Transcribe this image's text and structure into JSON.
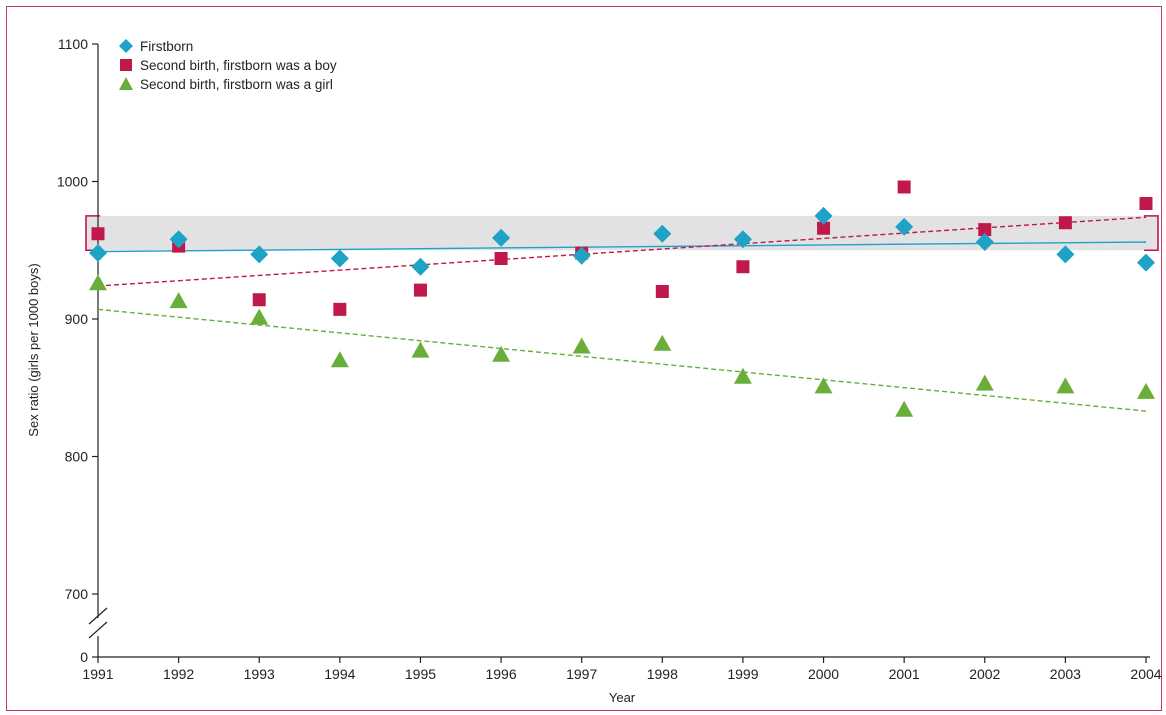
{
  "chart_data": {
    "type": "scatter",
    "xlabel": "Year",
    "ylabel": "Sex ratio (girls per 1000 boys)",
    "x_ticks": [
      "1991",
      "1992",
      "1993",
      "1994",
      "1995",
      "1996",
      "1997",
      "1998",
      "1999",
      "2000",
      "2001",
      "2002",
      "2003",
      "2004"
    ],
    "y_ticks": [
      "0",
      "700",
      "800",
      "900",
      "1000",
      "1100"
    ],
    "x": [
      1991,
      1992,
      1993,
      1994,
      1995,
      1996,
      1997,
      1998,
      1999,
      2000,
      2001,
      2002,
      2003,
      2004
    ],
    "ylim": [
      700,
      1100
    ],
    "y_axis_break": true,
    "reference_band": {
      "low": 950,
      "high": 975
    },
    "legend_position": "top-left",
    "series": [
      {
        "name": "Firstborn",
        "marker": "diamond",
        "color": "#1ea3c6",
        "values": [
          948,
          958,
          947,
          944,
          938,
          959,
          946,
          962,
          958,
          975,
          967,
          956,
          947,
          941
        ],
        "trend": {
          "start": 949,
          "end": 956,
          "style": "solid"
        }
      },
      {
        "name": "Second birth, firstborn was a boy",
        "marker": "square",
        "color": "#c0184a",
        "values": [
          962,
          953,
          914,
          907,
          921,
          944,
          948,
          920,
          938,
          966,
          996,
          965,
          970,
          984
        ],
        "trend": {
          "start": 924,
          "end": 974,
          "style": "dashed"
        }
      },
      {
        "name": "Second birth, firstborn was a girl",
        "marker": "triangle",
        "color": "#6aae3a",
        "values": [
          926,
          913,
          901,
          870,
          877,
          874,
          880,
          882,
          858,
          851,
          834,
          853,
          851,
          847
        ],
        "trend": {
          "start": 907,
          "end": 833,
          "style": "dashed"
        }
      }
    ]
  }
}
